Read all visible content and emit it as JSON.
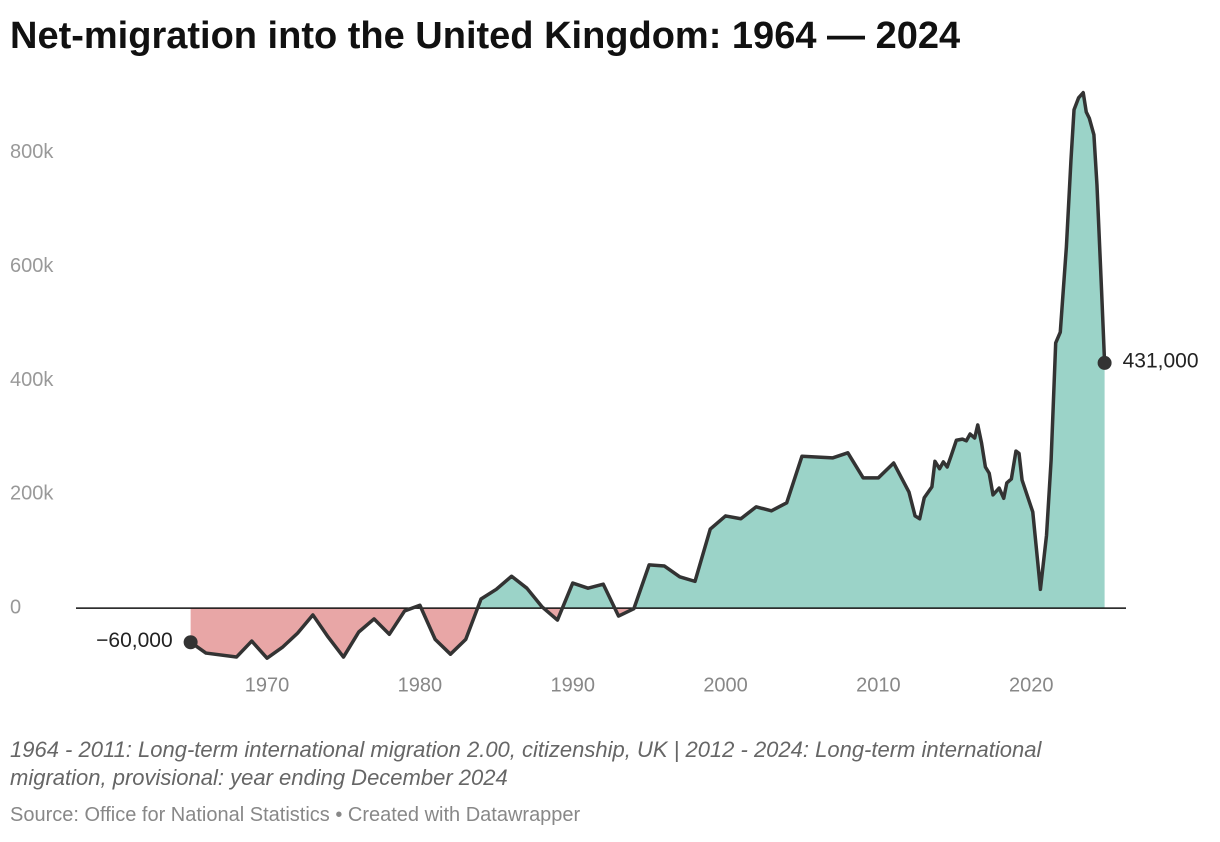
{
  "chart_data": {
    "type": "area",
    "title": "Net-migration into the United Kingdom: 1964 — 2024",
    "note": "1964 - 2011: Long-term international migration 2.00, citizenship, UK | 2012 - 2024: Long-term international migration, provisional: year ending December 2024",
    "source": "Source: Office for National Statistics • Created with Datawrapper",
    "x": [
      1965,
      1966,
      1968,
      1969,
      1970,
      1971,
      1972,
      1973,
      1974,
      1975,
      1976,
      1977,
      1978,
      1979,
      1980,
      1981,
      1982,
      1983,
      1984,
      1985,
      1986,
      1987,
      1988,
      1989,
      1990,
      1991,
      1992,
      1993,
      1994,
      1995,
      1996,
      1997,
      1998,
      1999,
      2000,
      2001,
      2002,
      2003,
      2004,
      2005,
      2007,
      2008,
      2009,
      2010,
      2011,
      2012,
      2012.4,
      2012.7,
      2013,
      2013.5,
      2013.7,
      2014,
      2014.25,
      2014.5,
      2014.75,
      2015.1,
      2015.5,
      2015.75,
      2016,
      2016.3,
      2016.5,
      2016.75,
      2017,
      2017.25,
      2017.5,
      2017.9,
      2018.2,
      2018.4,
      2018.7,
      2019,
      2019.2,
      2019.4,
      2019.75,
      2020.1,
      2020.6,
      2021,
      2021.3,
      2021.6,
      2021.9,
      2022.3,
      2022.6,
      2022.8,
      2023.1,
      2023.4,
      2023.6,
      2023.8,
      2024.1,
      2024.3,
      2024.6,
      2024.8
    ],
    "values": [
      -60000,
      -79000,
      -86000,
      -58000,
      -88000,
      -69000,
      -44000,
      -12000,
      -51000,
      -86000,
      -42000,
      -19000,
      -46000,
      -5000,
      5000,
      -55000,
      -81000,
      -55000,
      16000,
      33000,
      56000,
      35000,
      2000,
      -21000,
      44000,
      35000,
      42000,
      -14000,
      -1000,
      76000,
      74000,
      55000,
      47000,
      139000,
      162000,
      157000,
      178000,
      171000,
      185000,
      267000,
      264000,
      273000,
      229000,
      229000,
      255000,
      204000,
      162000,
      157000,
      194000,
      213000,
      258000,
      245000,
      257000,
      248000,
      267000,
      295000,
      297000,
      294000,
      306000,
      299000,
      322000,
      290000,
      248000,
      237000,
      199000,
      211000,
      193000,
      220000,
      227000,
      276000,
      272000,
      225000,
      197000,
      169000,
      33000,
      128000,
      260000,
      466000,
      485000,
      635000,
      788000,
      876000,
      897000,
      906000,
      872000,
      861000,
      832000,
      744000,
      559000,
      431000
    ],
    "value_labels": [
      "−60,000",
      null,
      null,
      null,
      null,
      null,
      null,
      null,
      null,
      null,
      null,
      null,
      null,
      null,
      null,
      null,
      null,
      null,
      null,
      null,
      null,
      null,
      null,
      null,
      null,
      null,
      null,
      null,
      null,
      null,
      null,
      null,
      null,
      null,
      null,
      null,
      null,
      null,
      null,
      null,
      null,
      null,
      null,
      null,
      null,
      null,
      null,
      null,
      null,
      null,
      null,
      null,
      null,
      null,
      null,
      null,
      null,
      null,
      null,
      null,
      null,
      null,
      null,
      null,
      null,
      null,
      null,
      null,
      null,
      null,
      null,
      null,
      null,
      null,
      null,
      null,
      null,
      null,
      null,
      null,
      null,
      null,
      null,
      null,
      null,
      null,
      null,
      null,
      null,
      "431,000"
    ],
    "positive_color": "#9bd3c8",
    "negative_color": "#e8a6a6",
    "line_color": "#333333",
    "xlim": [
      1957.5,
      2026.2
    ],
    "xticks": [
      1970,
      1980,
      1990,
      2000,
      2010,
      2020
    ],
    "ylim": [
      -100000,
      930000
    ],
    "yticks": [
      0,
      {
        "value": 200000,
        "label": "200k"
      },
      {
        "value": 400000,
        "label": "400k"
      },
      {
        "value": 600000,
        "label": "600k"
      },
      {
        "value": 800000,
        "label": "800k"
      }
    ],
    "grid": false
  }
}
